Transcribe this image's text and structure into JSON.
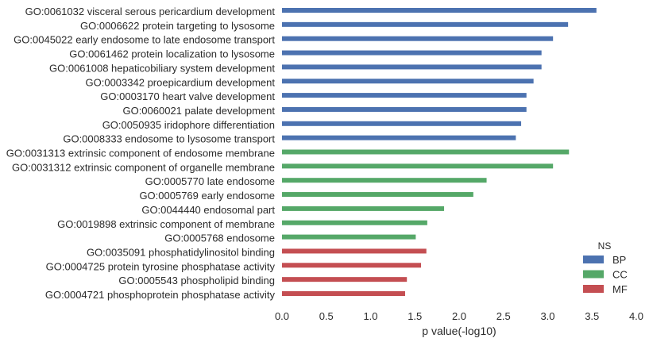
{
  "chart_data": {
    "type": "bar",
    "orientation": "horizontal",
    "xlabel": "p value(-log10)",
    "xlim": [
      0,
      4.0
    ],
    "x_ticks": [
      "0.0",
      "0.5",
      "1.0",
      "1.5",
      "2.0",
      "2.5",
      "3.0",
      "3.5",
      "4.0"
    ],
    "grid": false,
    "legend": {
      "title": "NS",
      "placement": "lower-right",
      "entries": [
        {
          "key": "BP",
          "label": "BP",
          "color": "#4c72b0"
        },
        {
          "key": "CC",
          "label": "CC",
          "color": "#55a868"
        },
        {
          "key": "MF",
          "label": "MF",
          "color": "#c44e52"
        }
      ]
    },
    "bars": [
      {
        "label": "GO:0061032 visceral serous pericardium development",
        "value": 3.55,
        "ns": "BP"
      },
      {
        "label": "GO:0006622 protein targeting to lysosome",
        "value": 3.23,
        "ns": "BP"
      },
      {
        "label": "GO:0045022 early endosome to late endosome transport",
        "value": 3.06,
        "ns": "BP"
      },
      {
        "label": "GO:0061462 protein localization to lysosome",
        "value": 2.93,
        "ns": "BP"
      },
      {
        "label": "GO:0061008 hepaticobiliary system development",
        "value": 2.93,
        "ns": "BP"
      },
      {
        "label": "GO:0003342 proepicardium development",
        "value": 2.84,
        "ns": "BP"
      },
      {
        "label": "GO:0003170 heart valve development",
        "value": 2.76,
        "ns": "BP"
      },
      {
        "label": "GO:0060021 palate development",
        "value": 2.76,
        "ns": "BP"
      },
      {
        "label": "GO:0050935 iridophore differentiation",
        "value": 2.7,
        "ns": "BP"
      },
      {
        "label": "GO:0008333 endosome to lysosome transport",
        "value": 2.64,
        "ns": "BP"
      },
      {
        "label": "GO:0031313 extrinsic component of endosome membrane",
        "value": 3.24,
        "ns": "CC"
      },
      {
        "label": "GO:0031312 extrinsic component of organelle membrane",
        "value": 3.06,
        "ns": "CC"
      },
      {
        "label": "GO:0005770 late endosome",
        "value": 2.31,
        "ns": "CC"
      },
      {
        "label": "GO:0005769 early endosome",
        "value": 2.16,
        "ns": "CC"
      },
      {
        "label": "GO:0044440 endosomal part",
        "value": 1.83,
        "ns": "CC"
      },
      {
        "label": "GO:0019898 extrinsic component of membrane",
        "value": 1.64,
        "ns": "CC"
      },
      {
        "label": "GO:0005768 endosome",
        "value": 1.51,
        "ns": "CC"
      },
      {
        "label": "GO:0035091 phosphatidylinositol binding",
        "value": 1.63,
        "ns": "MF"
      },
      {
        "label": "GO:0004725 protein tyrosine phosphatase activity",
        "value": 1.57,
        "ns": "MF"
      },
      {
        "label": "GO:0005543 phospholipid binding",
        "value": 1.41,
        "ns": "MF"
      },
      {
        "label": "GO:0004721 phosphoprotein phosphatase activity",
        "value": 1.39,
        "ns": "MF"
      }
    ]
  }
}
